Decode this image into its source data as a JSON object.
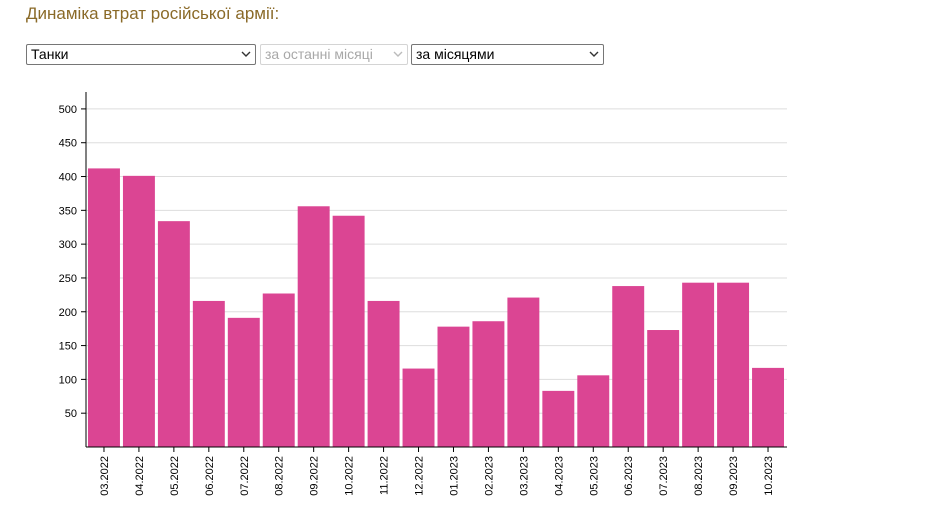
{
  "title": "Динаміка втрат російської армії:",
  "controls": {
    "category": "Танки",
    "period": "за останні місяці",
    "granularity": "за місяцями"
  },
  "icons": {
    "dropdown": "chevron-down-icon"
  },
  "colors": {
    "bar": "#db4593",
    "title": "#8a6a28",
    "grid": "#dddddd"
  },
  "chart_data": {
    "type": "bar",
    "categories": [
      "03.2022",
      "04.2022",
      "05.2022",
      "06.2022",
      "07.2022",
      "08.2022",
      "09.2022",
      "10.2022",
      "11.2022",
      "12.2022",
      "01.2023",
      "02.2023",
      "03.2023",
      "04.2023",
      "05.2023",
      "06.2023",
      "07.2023",
      "08.2023",
      "09.2023",
      "10.2023"
    ],
    "values": [
      412,
      401,
      334,
      216,
      191,
      227,
      356,
      342,
      216,
      116,
      178,
      186,
      221,
      83,
      106,
      238,
      173,
      243,
      243,
      117
    ],
    "ylim": [
      0,
      525
    ],
    "yticks": [
      50,
      100,
      150,
      200,
      250,
      300,
      350,
      400,
      450,
      500
    ],
    "grid": true,
    "legend": "none"
  }
}
